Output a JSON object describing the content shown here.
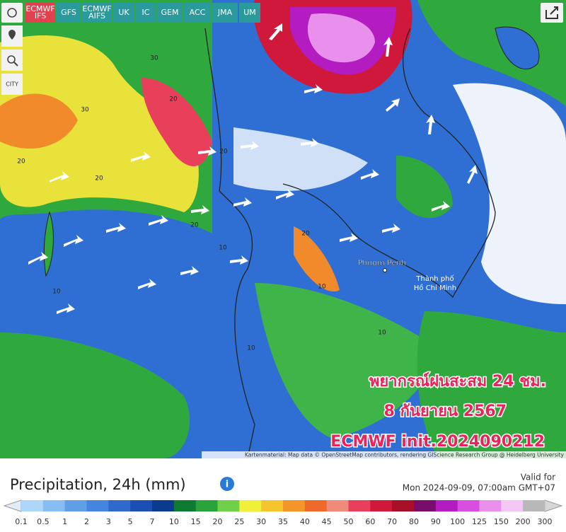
{
  "toolbar": {
    "models": [
      "ECMWF IFS",
      "GFS",
      "ECMWF AIFS",
      "UK",
      "IC",
      "GEM",
      "ACC",
      "JMA",
      "UM"
    ],
    "city": "CITY"
  },
  "map": {
    "places": [
      "Phnom Penh",
      "Thành phố",
      "Hồ Chí Minh"
    ],
    "contour_labels": [
      "20",
      "30",
      "20",
      "30",
      "20",
      "20",
      "10",
      "20",
      "10",
      "10",
      "10",
      "20",
      "10"
    ],
    "overlay": [
      "พยากรณ์ฝนสะสม 24 ชม.",
      "8 กันยายน 2567",
      "ECMWF init.2024090212"
    ],
    "attribution": "Kartenmaterial: Map data © OpenStreetMap contributors, rendering GIScience Research Group @ Heidelberg University"
  },
  "footer": {
    "title": "Precipitation, 24h (mm)",
    "valid_label": "Valid for",
    "valid_time": "Mon 2024-09-09, 07:00am GMT+07"
  },
  "legend": {
    "ticks": [
      0.1,
      0.5,
      1,
      2,
      3,
      5,
      7,
      10,
      15,
      20,
      25,
      30,
      35,
      40,
      45,
      50,
      60,
      70,
      80,
      90,
      100,
      125,
      150,
      200,
      300
    ],
    "colors": [
      "#aed6f8",
      "#86bdf2",
      "#5f9fe8",
      "#4685dd",
      "#2f69cc",
      "#1c4fb3",
      "#0c3a8c",
      "#0e7a32",
      "#2aa33a",
      "#6fd04a",
      "#f0f03a",
      "#f4c52e",
      "#f3952a",
      "#ef6a2a",
      "#f08a7a",
      "#e8405a",
      "#d0183a",
      "#a8102a",
      "#7a0c6c",
      "#b21cc0",
      "#d84ee0",
      "#e890ec",
      "#f4c8f4",
      "#b8b8b8"
    ]
  }
}
